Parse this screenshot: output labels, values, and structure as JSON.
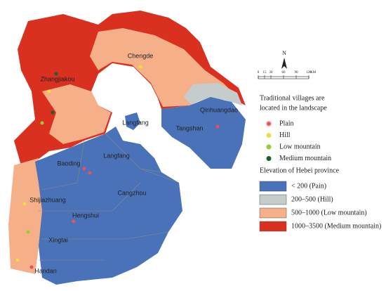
{
  "map": {
    "cities": [
      "Chengde",
      "Zhangjiakou",
      "Qinhuangdao",
      "Langfang",
      "Tangshan",
      "Langfang",
      "Baoding",
      "Cangzhou",
      "Shijiazhuang",
      "Hengshui",
      "Xingtai",
      "Handan"
    ],
    "north_label": "N",
    "scale_bar": {
      "ticks": [
        0,
        15,
        30,
        60,
        90,
        120
      ],
      "unit": "KM"
    },
    "villages_legend": {
      "title": [
        "Traditional villages are",
        "located in the landscape"
      ],
      "items": [
        {
          "label": "Plain",
          "color": "#e8505b"
        },
        {
          "label": "Hill",
          "color": "#e8e040"
        },
        {
          "label": "Low mountain",
          "color": "#9acd32"
        },
        {
          "label": "Medium mountain",
          "color": "#1f5e2a"
        }
      ]
    },
    "elevation_legend": {
      "title": "Elevation of Hebei province",
      "items": [
        {
          "label": "< 200 (Pain)",
          "color": "#4a72b8"
        },
        {
          "label": "200–500 (Hill)",
          "color": "#c5cdcc"
        },
        {
          "label": "500–1000 (Low mountain)",
          "color": "#f5b08a"
        },
        {
          "label": "1000–3500 (Medium mountain)",
          "color": "#d9301f"
        }
      ]
    }
  }
}
